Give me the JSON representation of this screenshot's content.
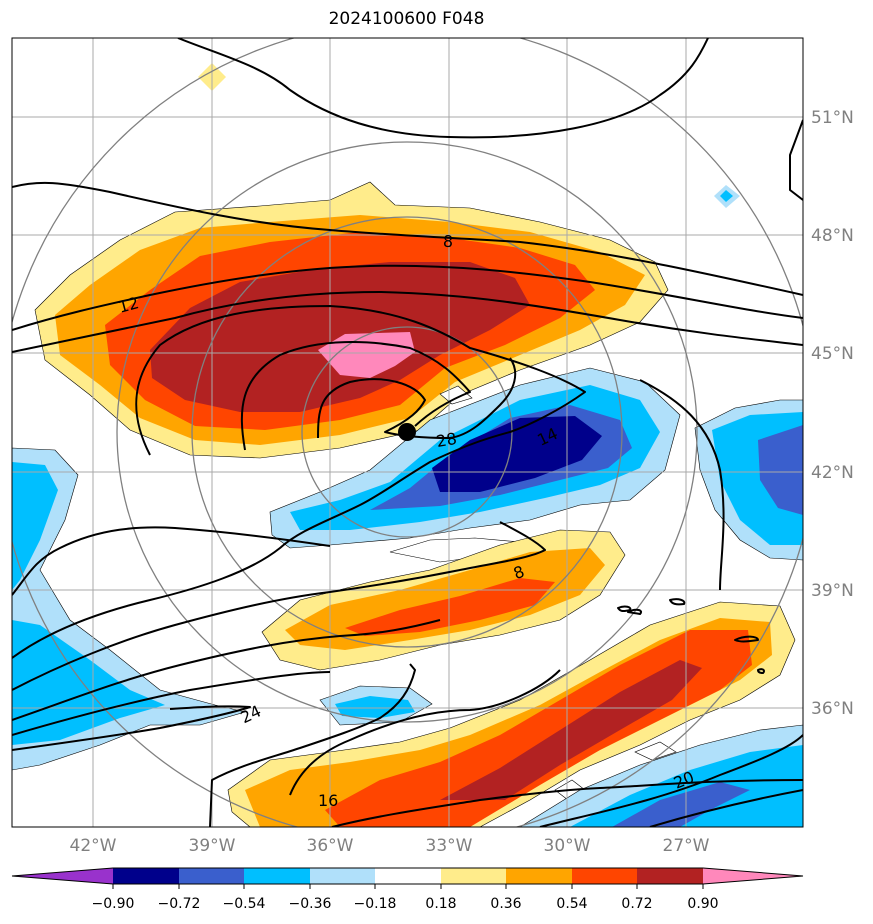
{
  "title": "2024100600 F048",
  "map": {
    "lon_ticks": [
      "42°W",
      "39°W",
      "36°W",
      "33°W",
      "30°W",
      "27°W"
    ],
    "lat_ticks": [
      "51°N",
      "48°N",
      "45°N",
      "42°N",
      "39°N",
      "36°N"
    ],
    "contour_labels": [
      "8",
      "12",
      "14",
      "20",
      "24",
      "16",
      "28",
      "8"
    ],
    "marker": "storm-center-dot"
  },
  "colorbar": {
    "ticks": [
      "−0.90",
      "−0.72",
      "−0.54",
      "−0.36",
      "−0.18",
      "0.18",
      "0.36",
      "0.54",
      "0.72",
      "0.90"
    ],
    "colors": [
      "#9932cc",
      "#00008b",
      "#3a5fcd",
      "#00bfff",
      "#b0e0fa",
      "#ffffff",
      "#ffec8b",
      "#ffa500",
      "#ff4500",
      "#b22222",
      "#ff88bb"
    ]
  }
}
